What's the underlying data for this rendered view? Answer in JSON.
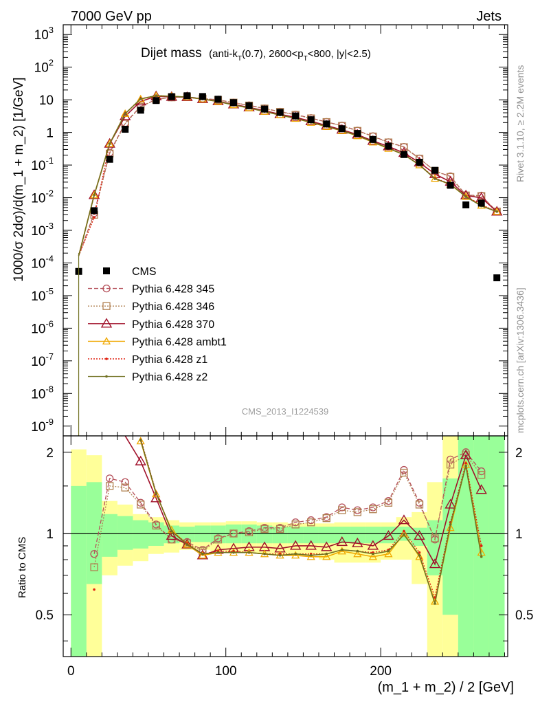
{
  "header": {
    "left": "7000 GeV pp",
    "right": "Jets"
  },
  "title": {
    "main": "Dijet mass",
    "detail_pre": "(anti-k",
    "detail_sub": "T",
    "detail_mid": "(0.7), 2600<p",
    "detail_sub2": "T",
    "detail_post": "<800, |y|<2.5)"
  },
  "side_labels": {
    "rivet": "Rivet 3.1.10, ≥ 2.2M events",
    "mcplots": "mcplots.cern.ch [arXiv:1306.3436]"
  },
  "watermark": "CMS_2013_I1224539",
  "axes": {
    "xlabel": "(m_1 + m_2) / 2 [GeV]",
    "ylabel_main": "1000/σ 2dσ)/d(m_1 + m_2) [1/GeV]",
    "ylabel_ratio": "Ratio to CMS",
    "x_ticks": [
      "0",
      "100",
      "200"
    ],
    "main_y_ticks": [
      "10^3",
      "10^2",
      "10",
      "1",
      "10^-1",
      "10^-2",
      "10^-3",
      "10^-4",
      "10^-5",
      "10^-6",
      "10^-7",
      "10^-8",
      "10^-9"
    ],
    "ratio_y_ticks": [
      "0.5",
      "1",
      "2"
    ]
  },
  "legend": [
    {
      "label": "CMS",
      "color": "#000000",
      "marker": "square"
    },
    {
      "label": "Pythia 6.428 345",
      "color": "#b5505a",
      "marker": "circle"
    },
    {
      "label": "Pythia 6.428 346",
      "color": "#b08050",
      "marker": "open-square"
    },
    {
      "label": "Pythia 6.428 370",
      "color": "#a0102a",
      "marker": "triangle"
    },
    {
      "label": "Pythia 6.428 ambt1",
      "color": "#f0a800",
      "marker": "triangle-small"
    },
    {
      "label": "Pythia 6.428 z1",
      "color": "#e02010",
      "marker": "dot"
    },
    {
      "label": "Pythia 6.428 z2",
      "color": "#707020",
      "marker": "dot"
    }
  ],
  "chart_data": {
    "type": "line",
    "x_range": [
      -5,
      282
    ],
    "main_y_range_log10": [
      -9.3,
      3.3
    ],
    "ratio_y_range": [
      0.35,
      2.3
    ],
    "x": [
      5,
      15,
      25,
      35,
      45,
      55,
      65,
      75,
      85,
      95,
      105,
      115,
      125,
      135,
      145,
      155,
      165,
      175,
      185,
      195,
      205,
      215,
      225,
      235,
      245,
      255,
      265,
      275
    ],
    "cms": [
      5.5e-05,
      0.004,
      0.15,
      1.25,
      4.8,
      9.5,
      12.5,
      13.3,
      12.6,
      10.4,
      8.2,
      6.6,
      5.2,
      4.1,
      3.2,
      2.45,
      1.82,
      1.3,
      0.93,
      0.61,
      0.38,
      0.21,
      0.122,
      0.069,
      0.024,
      0.006,
      0.0068,
      3.5e-05
    ],
    "series": [
      {
        "name": "Pythia 6.428 345",
        "ratio": [
          null,
          0.84,
          1.6,
          1.55,
          1.3,
          1.08,
          0.95,
          0.93,
          0.87,
          0.96,
          1.0,
          1.02,
          1.05,
          1.05,
          1.1,
          1.12,
          1.15,
          1.25,
          1.22,
          1.25,
          1.32,
          1.72,
          1.3,
          0.95,
          1.88,
          2.0,
          1.7,
          null
        ]
      },
      {
        "name": "Pythia 6.428 346",
        "ratio": [
          null,
          0.75,
          1.5,
          1.48,
          1.28,
          1.07,
          0.95,
          0.92,
          0.86,
          0.95,
          1.0,
          1.01,
          1.04,
          1.04,
          1.08,
          1.1,
          1.14,
          1.22,
          1.2,
          1.23,
          1.3,
          1.68,
          1.28,
          0.96,
          1.8,
          1.95,
          1.65,
          null
        ]
      },
      {
        "name": "Pythia 6.428 370",
        "ratio": [
          null,
          null,
          null,
          2.5,
          1.85,
          1.35,
          0.98,
          0.91,
          0.83,
          0.87,
          0.88,
          0.89,
          0.89,
          0.88,
          0.9,
          0.9,
          0.89,
          0.93,
          0.92,
          0.9,
          0.98,
          1.12,
          0.98,
          0.77,
          1.28,
          1.95,
          1.45,
          null
        ]
      },
      {
        "name": "Pythia 6.428 ambt1",
        "ratio": [
          null,
          null,
          null,
          null,
          2.2,
          1.4,
          1.03,
          0.91,
          0.83,
          0.85,
          0.85,
          0.85,
          0.84,
          0.83,
          0.83,
          0.82,
          0.82,
          0.86,
          0.84,
          0.82,
          0.84,
          1.0,
          0.82,
          0.56,
          1.05,
          1.8,
          0.85,
          null
        ]
      },
      {
        "name": "Pythia 6.428 z1",
        "ratio": [
          null,
          0.62,
          null,
          null,
          2.25,
          1.42,
          1.02,
          0.92,
          0.84,
          0.86,
          0.86,
          0.85,
          0.84,
          0.84,
          0.84,
          0.84,
          0.84,
          0.87,
          0.86,
          0.85,
          0.87,
          1.02,
          0.85,
          0.58,
          1.1,
          1.82,
          0.9,
          null
        ]
      },
      {
        "name": "Pythia 6.428 z2",
        "ratio": [
          null,
          null,
          null,
          null,
          2.22,
          1.41,
          1.02,
          0.91,
          0.84,
          0.85,
          0.85,
          0.85,
          0.84,
          0.83,
          0.84,
          0.83,
          0.84,
          0.87,
          0.86,
          0.84,
          0.86,
          0.99,
          0.83,
          0.55,
          1.08,
          1.78,
          0.82,
          null
        ]
      }
    ],
    "ratio_bands": {
      "green": [
        [
          0.35,
          1.5
        ],
        [
          0.65,
          1.55
        ],
        [
          0.82,
          1.18
        ],
        [
          0.87,
          1.16
        ],
        [
          0.88,
          1.12
        ],
        [
          0.9,
          1.1
        ],
        [
          0.92,
          1.07
        ],
        [
          0.93,
          1.06
        ],
        [
          0.93,
          1.07
        ],
        [
          0.92,
          1.07
        ],
        [
          0.92,
          1.08
        ],
        [
          0.92,
          1.08
        ],
        [
          0.92,
          1.07
        ],
        [
          0.92,
          1.06
        ],
        [
          0.92,
          1.06
        ],
        [
          0.92,
          1.06
        ],
        [
          0.92,
          1.06
        ],
        [
          0.92,
          1.06
        ],
        [
          0.92,
          1.06
        ],
        [
          0.92,
          1.06
        ],
        [
          0.92,
          1.06
        ],
        [
          0.94,
          1.06
        ],
        [
          0.9,
          1.05
        ],
        [
          0.7,
          1.12
        ],
        [
          0.5,
          1.6
        ],
        [
          0.35,
          2.3
        ],
        [
          0.35,
          2.3
        ],
        [
          0.35,
          2.3
        ]
      ],
      "yellow": [
        [
          0.35,
          2.05
        ],
        [
          0.35,
          1.95
        ],
        [
          0.7,
          1.32
        ],
        [
          0.76,
          1.28
        ],
        [
          0.79,
          1.18
        ],
        [
          0.84,
          1.15
        ],
        [
          0.85,
          1.12
        ],
        [
          0.87,
          1.1
        ],
        [
          0.87,
          1.1
        ],
        [
          0.86,
          1.1
        ],
        [
          0.85,
          1.11
        ],
        [
          0.85,
          1.11
        ],
        [
          0.84,
          1.1
        ],
        [
          0.83,
          1.1
        ],
        [
          0.83,
          1.09
        ],
        [
          0.83,
          1.09
        ],
        [
          0.8,
          1.09
        ],
        [
          0.78,
          1.1
        ],
        [
          0.78,
          1.1
        ],
        [
          0.78,
          1.1
        ],
        [
          0.8,
          1.1
        ],
        [
          0.8,
          1.15
        ],
        [
          0.65,
          1.2
        ],
        [
          0.35,
          1.55
        ],
        [
          0.35,
          2.3
        ],
        [
          0.35,
          2.3
        ],
        [
          0.35,
          2.3
        ],
        [
          0.35,
          2.3
        ]
      ]
    }
  }
}
